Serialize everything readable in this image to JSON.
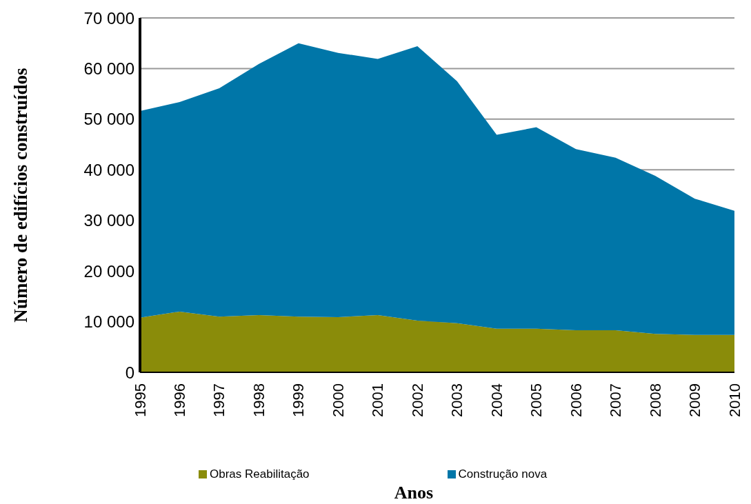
{
  "chart_data": {
    "type": "area",
    "stacked": true,
    "xlabel": "Anos",
    "ylabel": "Número de edifícios construídos",
    "categories": [
      "1995",
      "1996",
      "1997",
      "1998",
      "1999",
      "2000",
      "2001",
      "2002",
      "2003",
      "2004",
      "2005",
      "2006",
      "2007",
      "2008",
      "2009",
      "2010"
    ],
    "series": [
      {
        "name": "Obras Reabilitação",
        "color": "#8a8c0a",
        "values": [
          10800,
          12000,
          11000,
          11300,
          11000,
          10900,
          11300,
          10200,
          9700,
          8600,
          8600,
          8300,
          8300,
          7600,
          7400,
          7400
        ]
      },
      {
        "name": "Construção nova",
        "color": "#0076a8",
        "values": [
          40800,
          41400,
          45100,
          49600,
          54000,
          52200,
          50600,
          54200,
          47800,
          38300,
          39800,
          35800,
          34100,
          31200,
          26900,
          24500
        ]
      }
    ],
    "ylim": [
      0,
      70000
    ],
    "yticks": [
      {
        "value": 0,
        "label": "0"
      },
      {
        "value": 10000,
        "label": "10 000"
      },
      {
        "value": 20000,
        "label": "20 000"
      },
      {
        "value": 30000,
        "label": "30 000"
      },
      {
        "value": 40000,
        "label": "40 000"
      },
      {
        "value": 50000,
        "label": "50 000"
      },
      {
        "value": 60000,
        "label": "60 000"
      },
      {
        "value": 70000,
        "label": "70 000"
      }
    ],
    "grid": "y",
    "legend": "bottom"
  }
}
